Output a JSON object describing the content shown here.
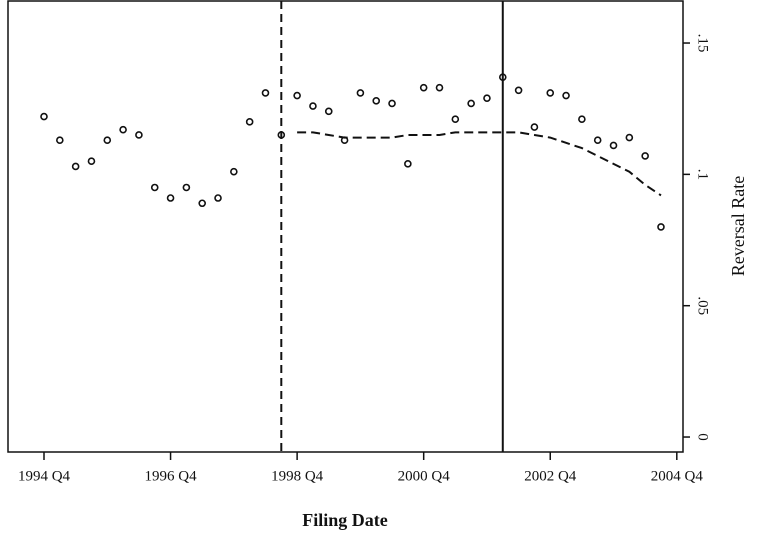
{
  "chart_data": {
    "type": "scatter",
    "x_label": "Filing Date",
    "y_label": "Reversal Rate",
    "categories": [
      "1994 Q4",
      null,
      null,
      null,
      null,
      null,
      null,
      null,
      "1996 Q4",
      null,
      null,
      null,
      null,
      null,
      null,
      null,
      "1998 Q4",
      null,
      null,
      null,
      null,
      null,
      null,
      null,
      "2000 Q4",
      null,
      null,
      null,
      null,
      null,
      null,
      null,
      "2002 Q4",
      null,
      null,
      null,
      null,
      null,
      null,
      null,
      "2004 Q4"
    ],
    "series": [
      {
        "style": "markers",
        "color": "#111111",
        "values": [
          0.122,
          0.113,
          0.103,
          0.105,
          0.113,
          0.117,
          0.115,
          0.095,
          0.091,
          0.095,
          0.089,
          0.091,
          0.101,
          0.12,
          0.131,
          0.115,
          0.13,
          0.126,
          0.124,
          0.113,
          0.131,
          0.128,
          0.127,
          0.104,
          0.133,
          0.133,
          0.121,
          0.127,
          0.129,
          0.137,
          0.132,
          0.118,
          0.131,
          0.13,
          0.121,
          0.113,
          0.111,
          0.114,
          0.107,
          0.08,
          null
        ]
      },
      {
        "style": "dashed-line",
        "color": "#111111",
        "values": [
          null,
          null,
          null,
          null,
          null,
          null,
          null,
          null,
          null,
          null,
          null,
          null,
          null,
          null,
          null,
          null,
          0.116,
          0.116,
          0.115,
          0.114,
          0.114,
          0.114,
          0.114,
          0.115,
          0.115,
          0.115,
          0.116,
          0.116,
          0.116,
          0.116,
          0.116,
          0.115,
          0.114,
          0.112,
          0.11,
          0.107,
          0.104,
          0.101,
          0.096,
          0.092,
          null
        ]
      }
    ],
    "vlines": [
      {
        "at": 15,
        "style": "dashed"
      },
      {
        "at": 29,
        "style": "solid"
      }
    ],
    "ylim": [
      -0.0057,
      0.166
    ],
    "yticks": [
      0,
      {
        "value": 0.05,
        "label": ".05"
      },
      {
        "value": 0.1,
        "label": ".1"
      },
      {
        "value": 0.15,
        "label": ".15"
      }
    ],
    "y_axis_side": "right",
    "grid": false
  }
}
